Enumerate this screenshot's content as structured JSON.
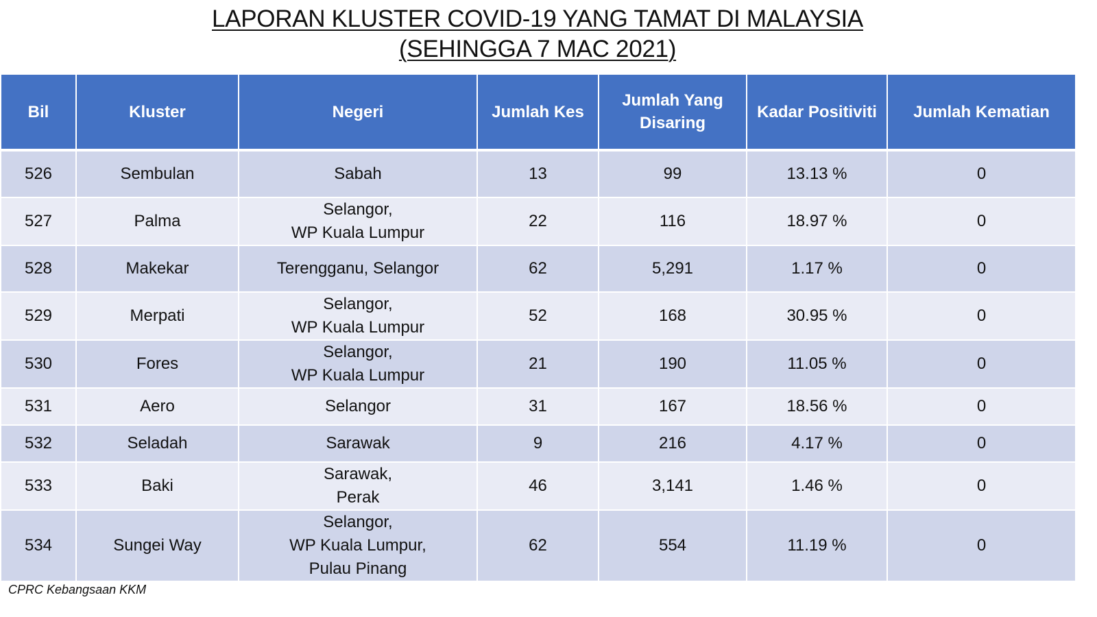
{
  "title": {
    "line1": "LAPORAN KLUSTER COVID-19 YANG TAMAT DI MALAYSIA",
    "line2": "(SEHINGGA 7 MAC 2021)"
  },
  "table": {
    "headers": {
      "bil": "Bil",
      "kluster": "Kluster",
      "negeri": "Negeri",
      "jumlah_kes": "Jumlah Kes",
      "jumlah_disaring_1": "Jumlah Yang",
      "jumlah_disaring_2": "Disaring",
      "kadar_positiviti": "Kadar Positiviti",
      "jumlah_kematian": "Jumlah Kematian"
    },
    "rows": [
      {
        "bil": "526",
        "kluster": "Sembulan",
        "negeri": [
          "Sabah"
        ],
        "kes": "13",
        "disaring": "99",
        "positiviti": "13.13 %",
        "kematian": "0"
      },
      {
        "bil": "527",
        "kluster": "Palma",
        "negeri": [
          "Selangor,",
          "WP Kuala Lumpur"
        ],
        "kes": "22",
        "disaring": "116",
        "positiviti": "18.97 %",
        "kematian": "0"
      },
      {
        "bil": "528",
        "kluster": "Makekar",
        "negeri": [
          "Terengganu, Selangor"
        ],
        "kes": "62",
        "disaring": "5,291",
        "positiviti": "1.17 %",
        "kematian": "0"
      },
      {
        "bil": "529",
        "kluster": "Merpati",
        "negeri": [
          "Selangor,",
          "WP Kuala Lumpur"
        ],
        "kes": "52",
        "disaring": "168",
        "positiviti": "30.95 %",
        "kematian": "0"
      },
      {
        "bil": "530",
        "kluster": "Fores",
        "negeri": [
          "Selangor,",
          "WP Kuala Lumpur"
        ],
        "kes": "21",
        "disaring": "190",
        "positiviti": "11.05 %",
        "kematian": "0"
      },
      {
        "bil": "531",
        "kluster": "Aero",
        "negeri": [
          "Selangor"
        ],
        "kes": "31",
        "disaring": "167",
        "positiviti": "18.56 %",
        "kematian": "0"
      },
      {
        "bil": "532",
        "kluster": "Seladah",
        "negeri": [
          "Sarawak"
        ],
        "kes": "9",
        "disaring": "216",
        "positiviti": "4.17 %",
        "kematian": "0"
      },
      {
        "bil": "533",
        "kluster": "Baki",
        "negeri": [
          "Sarawak,",
          "Perak"
        ],
        "kes": "46",
        "disaring": "3,141",
        "positiviti": "1.46 %",
        "kematian": "0"
      },
      {
        "bil": "534",
        "kluster": "Sungei Way",
        "negeri": [
          "Selangor,",
          "WP Kuala Lumpur,",
          "Pulau Pinang"
        ],
        "kes": "62",
        "disaring": "554",
        "positiviti": "11.19 %",
        "kematian": "0"
      }
    ]
  },
  "footer": {
    "source": "CPRC Kebangsaan KKM"
  },
  "colors": {
    "header_bg": "#4472c4",
    "row_odd": "#cfd5ea",
    "row_even": "#e9ebf5"
  }
}
